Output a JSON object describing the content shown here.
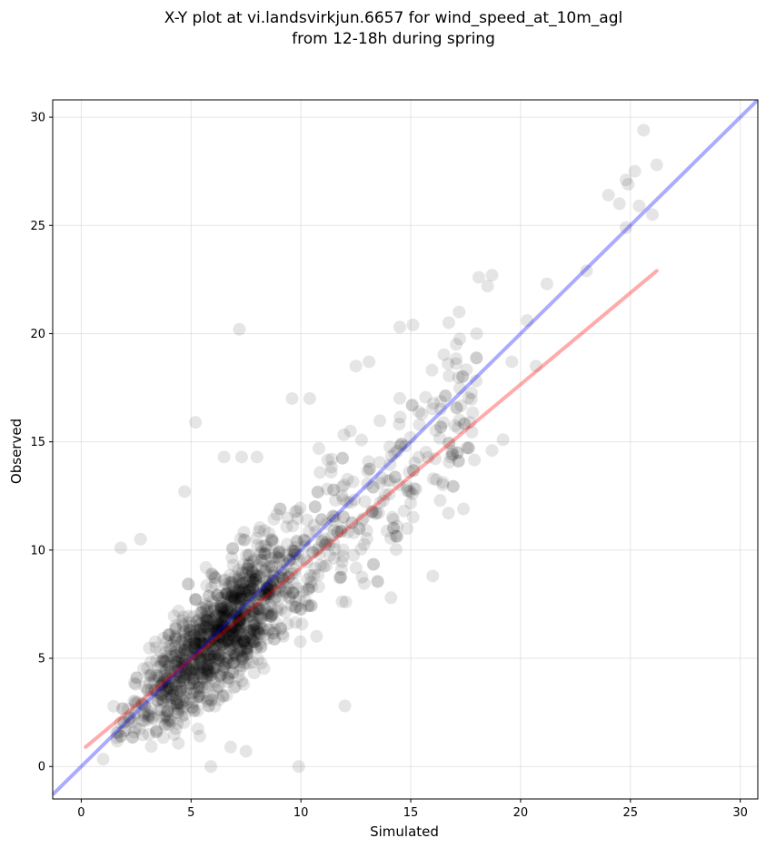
{
  "chart_data": {
    "type": "scatter",
    "title_lines": [
      "X-Y plot at vi.landsvirkjun.6657 for wind_speed_at_10m_agl",
      "from 12-18h during spring"
    ],
    "xlabel": "Simulated",
    "ylabel": "Observed",
    "xlim": [
      -1.3,
      30.8
    ],
    "ylim": [
      -1.5,
      30.8
    ],
    "xticks": [
      0,
      5,
      10,
      15,
      20,
      25,
      30
    ],
    "yticks": [
      0,
      5,
      10,
      15,
      20,
      25,
      30
    ],
    "grid": true,
    "colors": {
      "points": "#000000",
      "identity_line": "#0000ff",
      "fit_line": "#ff0000",
      "grid": "#cccccc"
    },
    "fit_line": {
      "x": [
        0.2,
        26.2
      ],
      "y": [
        0.9,
        22.9
      ]
    },
    "identity_line": {
      "x": [
        -1.3,
        30.8
      ],
      "y": [
        -1.3,
        30.8
      ]
    },
    "highlighted_points": [
      {
        "x": 25.6,
        "y": 29.4
      },
      {
        "x": 26.2,
        "y": 27.8
      },
      {
        "x": 25.2,
        "y": 27.5
      },
      {
        "x": 24.8,
        "y": 27.1
      },
      {
        "x": 24.9,
        "y": 26.9
      },
      {
        "x": 24.0,
        "y": 26.4
      },
      {
        "x": 25.4,
        "y": 25.9
      },
      {
        "x": 24.5,
        "y": 26.0
      },
      {
        "x": 26.0,
        "y": 25.5
      },
      {
        "x": 24.8,
        "y": 24.9
      },
      {
        "x": 23.0,
        "y": 22.9
      },
      {
        "x": 21.2,
        "y": 22.3
      },
      {
        "x": 18.1,
        "y": 22.6
      },
      {
        "x": 18.7,
        "y": 22.7
      },
      {
        "x": 18.5,
        "y": 22.2
      },
      {
        "x": 20.3,
        "y": 20.6
      },
      {
        "x": 7.2,
        "y": 20.2
      },
      {
        "x": 14.5,
        "y": 20.3
      },
      {
        "x": 15.1,
        "y": 20.4
      },
      {
        "x": 17.2,
        "y": 21.0
      },
      {
        "x": 18.0,
        "y": 20.0
      },
      {
        "x": 20.7,
        "y": 18.5
      },
      {
        "x": 19.6,
        "y": 18.7
      },
      {
        "x": 12.5,
        "y": 18.5
      },
      {
        "x": 13.1,
        "y": 18.7
      },
      {
        "x": 16.7,
        "y": 18.6
      },
      {
        "x": 5.2,
        "y": 15.9
      },
      {
        "x": 9.6,
        "y": 17.0
      },
      {
        "x": 10.4,
        "y": 17.0
      },
      {
        "x": 19.2,
        "y": 15.1
      },
      {
        "x": 18.7,
        "y": 14.6
      },
      {
        "x": 17.4,
        "y": 11.9
      },
      {
        "x": 16.0,
        "y": 8.8
      },
      {
        "x": 14.1,
        "y": 7.8
      },
      {
        "x": 12.0,
        "y": 2.8
      },
      {
        "x": 9.9,
        "y": 0.0
      },
      {
        "x": 6.8,
        "y": 0.9
      },
      {
        "x": 7.5,
        "y": 0.7
      },
      {
        "x": 5.9,
        "y": 0.0
      },
      {
        "x": 1.8,
        "y": 10.1
      },
      {
        "x": 2.7,
        "y": 10.5
      },
      {
        "x": 4.7,
        "y": 12.7
      },
      {
        "x": 6.5,
        "y": 14.3
      },
      {
        "x": 7.3,
        "y": 14.3
      },
      {
        "x": 8.0,
        "y": 14.3
      }
    ]
  }
}
